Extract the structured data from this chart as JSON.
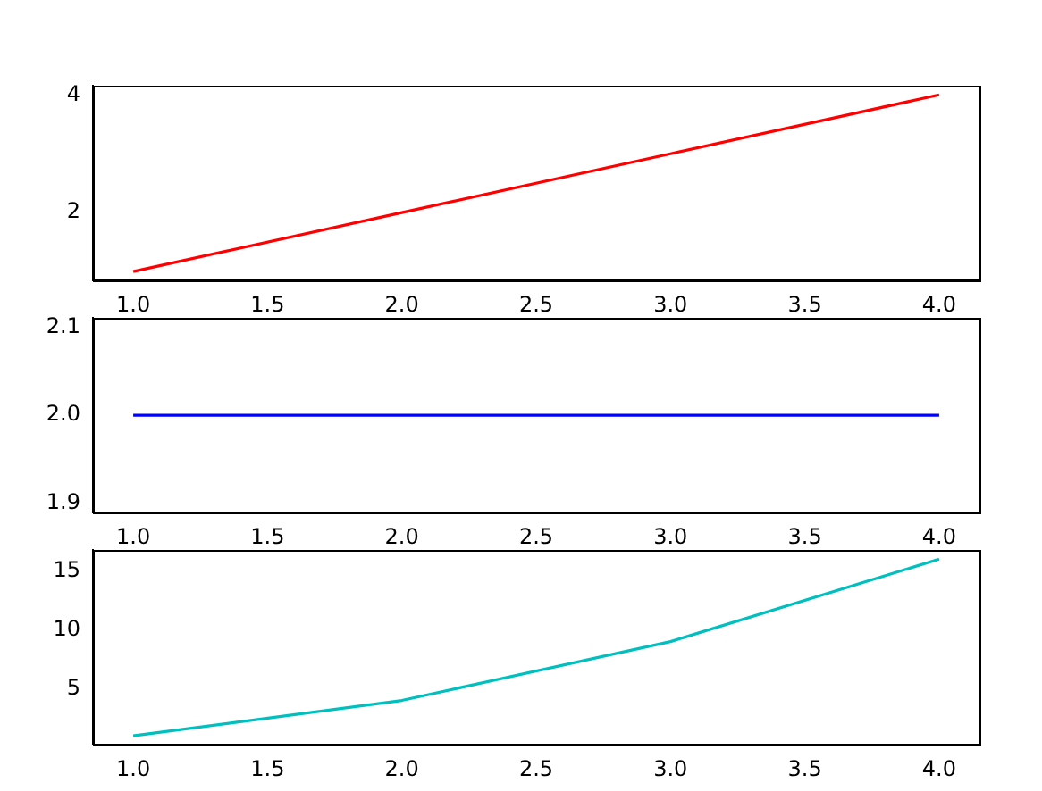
{
  "chart_data": [
    {
      "type": "line",
      "x": [
        1,
        2,
        3,
        4
      ],
      "series": [
        {
          "color": "#ff0000",
          "values": [
            1,
            2,
            3,
            4
          ]
        }
      ],
      "xlim": [
        0.85,
        4.15
      ],
      "xticks": [
        {
          "value": 1,
          "label": "1.0"
        },
        {
          "value": 1.5,
          "label": "1.5"
        },
        {
          "value": 2,
          "label": "2.0"
        },
        {
          "value": 2.5,
          "label": "2.5"
        },
        {
          "value": 3,
          "label": "3.0"
        },
        {
          "value": 3.5,
          "label": "3.5"
        },
        {
          "value": 4,
          "label": "4.0"
        }
      ],
      "ylim": [
        0.85,
        4.15
      ],
      "yticks": [
        2,
        4
      ]
    },
    {
      "type": "line",
      "x": [
        1,
        2,
        3,
        4
      ],
      "series": [
        {
          "color": "#0000ff",
          "values": [
            2,
            2,
            2,
            2
          ]
        }
      ],
      "xlim": [
        0.85,
        4.15
      ],
      "xticks": [
        {
          "value": 1,
          "label": "1.0"
        },
        {
          "value": 1.5,
          "label": "1.5"
        },
        {
          "value": 2,
          "label": "2.0"
        },
        {
          "value": 2.5,
          "label": "2.5"
        },
        {
          "value": 3,
          "label": "3.0"
        },
        {
          "value": 3.5,
          "label": "3.5"
        },
        {
          "value": 4,
          "label": "4.0"
        }
      ],
      "ylim": [
        1.89,
        2.11
      ],
      "yticks": [
        {
          "value": 1.9,
          "label": "1.9"
        },
        {
          "value": 2,
          "label": "2.0"
        },
        {
          "value": 2.1,
          "label": "2.1"
        }
      ]
    },
    {
      "type": "line",
      "x": [
        1,
        2,
        3,
        4
      ],
      "series": [
        {
          "color": "#00bfbf",
          "values": [
            1,
            4,
            9,
            16
          ]
        }
      ],
      "xlim": [
        0.85,
        4.15
      ],
      "xticks": [
        {
          "value": 1,
          "label": "1.0"
        },
        {
          "value": 1.5,
          "label": "1.5"
        },
        {
          "value": 2,
          "label": "2.0"
        },
        {
          "value": 2.5,
          "label": "2.5"
        },
        {
          "value": 3,
          "label": "3.0"
        },
        {
          "value": 3.5,
          "label": "3.5"
        },
        {
          "value": 4,
          "label": "4.0"
        }
      ],
      "ylim": [
        0.25,
        16.75
      ],
      "yticks": [
        5,
        10,
        15
      ]
    }
  ]
}
